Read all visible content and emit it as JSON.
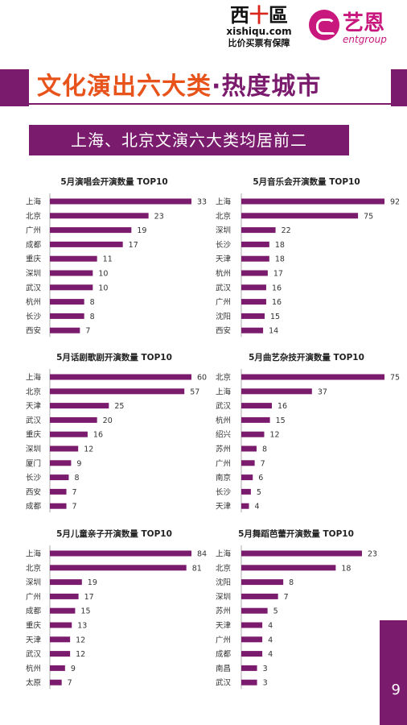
{
  "header": {
    "logo1_zh_a": "西",
    "logo1_zh_plus": "十",
    "logo1_zh_b": "區",
    "logo1_url": "xishiqu.com",
    "logo1_slogan": "比价买票有保障",
    "logo2_zh": "艺恩",
    "logo2_en": "entgroup",
    "title_part1": "文化演出六大类",
    "title_dot": "·",
    "title_part2": "热度城市",
    "subtitle": "上海、北京文演六大类均居前二"
  },
  "page_number": "9",
  "colors": {
    "accent": "#7b1b6e",
    "title_orange": "#e8531b",
    "brand_pink": "#c8187d"
  },
  "chart_data": [
    {
      "type": "bar",
      "title": "5月演唱会开演数量 TOP10",
      "categories": [
        "上海",
        "北京",
        "广州",
        "成都",
        "重庆",
        "深圳",
        "武汉",
        "杭州",
        "长沙",
        "西安"
      ],
      "values": [
        33,
        23,
        19,
        17,
        11,
        10,
        10,
        8,
        8,
        7
      ]
    },
    {
      "type": "bar",
      "title": "5月音乐会开演数量 TOP10",
      "categories": [
        "上海",
        "北京",
        "深圳",
        "长沙",
        "天津",
        "杭州",
        "武汉",
        "广州",
        "沈阳",
        "西安"
      ],
      "values": [
        92,
        75,
        22,
        18,
        18,
        17,
        16,
        16,
        15,
        14
      ]
    },
    {
      "type": "bar",
      "title": "5月话剧歌剧开演数量 TOP10",
      "categories": [
        "上海",
        "北京",
        "天津",
        "武汉",
        "重庆",
        "深圳",
        "厦门",
        "长沙",
        "西安",
        "成都"
      ],
      "values": [
        60,
        57,
        25,
        20,
        16,
        12,
        9,
        8,
        7,
        7
      ]
    },
    {
      "type": "bar",
      "title": "5月曲艺杂技开演数量 TOP10",
      "categories": [
        "北京",
        "上海",
        "武汉",
        "杭州",
        "绍兴",
        "苏州",
        "广州",
        "南京",
        "长沙",
        "天津"
      ],
      "values": [
        75,
        37,
        16,
        15,
        12,
        8,
        7,
        6,
        5,
        4
      ]
    },
    {
      "type": "bar",
      "title": "5月儿童亲子开演数量 TOP10",
      "categories": [
        "上海",
        "北京",
        "深圳",
        "广州",
        "成都",
        "重庆",
        "天津",
        "武汉",
        "杭州",
        "太原"
      ],
      "values": [
        84,
        81,
        19,
        17,
        15,
        13,
        12,
        12,
        9,
        7
      ]
    },
    {
      "type": "bar",
      "title": "5月舞蹈芭蕾开演数量 TOP10",
      "categories": [
        "上海",
        "北京",
        "沈阳",
        "深圳",
        "苏州",
        "天津",
        "广州",
        "成都",
        "南昌",
        "武汉"
      ],
      "values": [
        23,
        18,
        8,
        7,
        5,
        4,
        4,
        4,
        3,
        3
      ]
    }
  ]
}
